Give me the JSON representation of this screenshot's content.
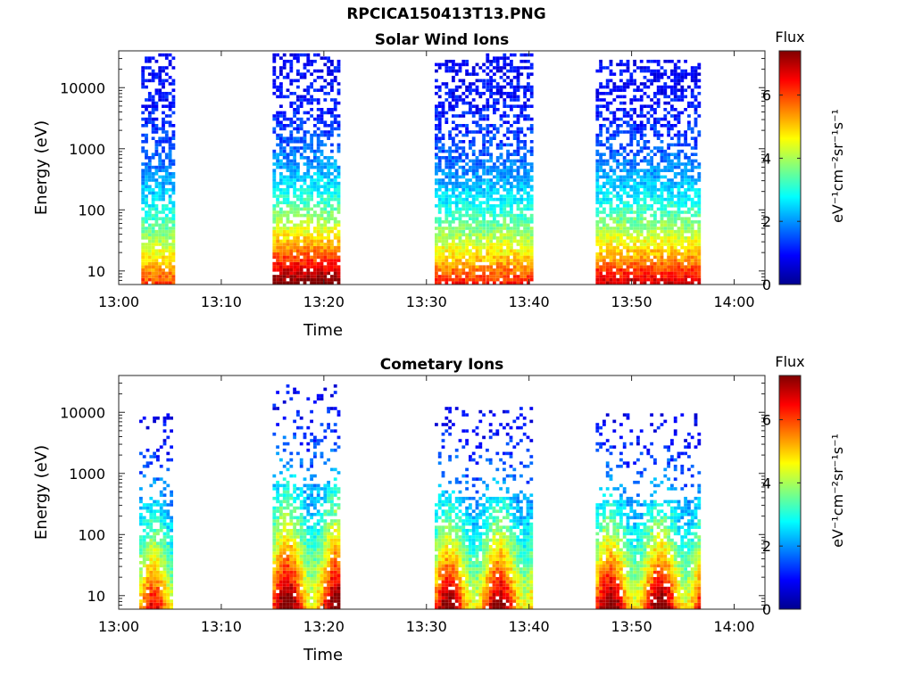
{
  "figure": {
    "title": "RPCICA150413T13.PNG"
  },
  "chart_data": [
    {
      "type": "heatmap",
      "title": "Solar Wind Ions",
      "xlabel": "Time",
      "ylabel": "Energy (eV)",
      "y_scale": "log",
      "ylim": [
        6,
        40000
      ],
      "xlim": [
        "13:00",
        "14:03"
      ],
      "x_ticks": [
        "13:00",
        "13:10",
        "13:20",
        "13:30",
        "13:40",
        "13:50",
        "14:00"
      ],
      "y_ticks": [
        "10",
        "100",
        "1000",
        "10000"
      ],
      "colorbar": {
        "title": "Flux",
        "label": "eV⁻¹cm⁻²sr⁻¹s⁻¹",
        "range": [
          0,
          7.4
        ],
        "ticks": [
          "0",
          "2",
          "4",
          "6"
        ],
        "colormap": "jet"
      },
      "bursts": [
        {
          "start_min": 2.2,
          "end_min": 5.2,
          "emax": 35000,
          "peak_flux": 5.2,
          "cometary": false
        },
        {
          "start_min": 15.0,
          "end_min": 21.5,
          "emax": 35000,
          "peak_flux": 6.8,
          "cometary": false
        },
        {
          "start_min": 30.8,
          "end_min": 35.5,
          "emax": 30000,
          "peak_flux": 5.5,
          "cometary": false
        },
        {
          "start_min": 35.8,
          "end_min": 40.2,
          "emax": 35000,
          "peak_flux": 5.5,
          "cometary": false
        },
        {
          "start_min": 46.5,
          "end_min": 56.5,
          "emax": 30000,
          "peak_flux": 6.0,
          "cometary": false
        }
      ]
    },
    {
      "type": "heatmap",
      "title": "Cometary Ions",
      "xlabel": "Time",
      "ylabel": "Energy (eV)",
      "y_scale": "log",
      "ylim": [
        6,
        40000
      ],
      "xlim": [
        "13:00",
        "14:03"
      ],
      "x_ticks": [
        "13:00",
        "13:10",
        "13:20",
        "13:30",
        "13:40",
        "13:50",
        "14:00"
      ],
      "y_ticks": [
        "10",
        "100",
        "1000",
        "10000"
      ],
      "colorbar": {
        "title": "Flux",
        "label": "eV⁻¹cm⁻²sr⁻¹s⁻¹",
        "range": [
          0,
          7.4
        ],
        "ticks": [
          "0",
          "2",
          "4",
          "6"
        ],
        "colormap": "jet"
      },
      "bursts": [
        {
          "start_min": 2.0,
          "end_min": 5.3,
          "emax": 10000,
          "peak_flux": 6.0,
          "cometary": true
        },
        {
          "start_min": 15.0,
          "end_min": 21.5,
          "emax": 30000,
          "peak_flux": 7.2,
          "cometary": true
        },
        {
          "start_min": 30.8,
          "end_min": 40.2,
          "emax": 12000,
          "peak_flux": 7.0,
          "cometary": true
        },
        {
          "start_min": 46.5,
          "end_min": 56.5,
          "emax": 10000,
          "peak_flux": 7.2,
          "cometary": true
        }
      ]
    }
  ]
}
